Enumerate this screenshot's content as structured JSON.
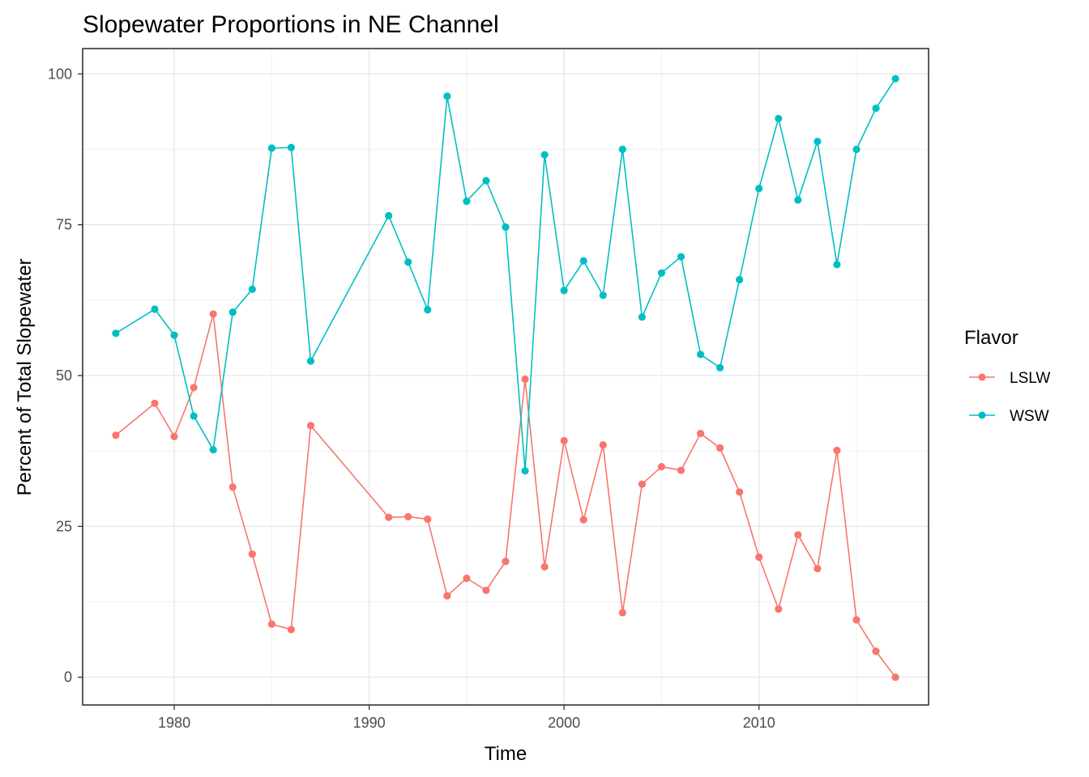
{
  "chart_data": {
    "type": "line",
    "title": "Slopewater Proportions in NE Channel",
    "xlabel": "Time",
    "ylabel": "Percent of Total Slopewater",
    "xlim": [
      1975.3,
      2018.7
    ],
    "ylim": [
      -4.6,
      104.2
    ],
    "x_ticks": [
      1980,
      1990,
      2000,
      2010
    ],
    "x_tick_labels": [
      "1980",
      "1990",
      "2000",
      "2010"
    ],
    "y_ticks": [
      0,
      25,
      50,
      75,
      100
    ],
    "y_tick_labels": [
      "0",
      "25",
      "50",
      "75",
      "100"
    ],
    "grid": true,
    "legend": {
      "title": "Flavor",
      "position": "right"
    },
    "series": [
      {
        "name": "LSLW",
        "color": "#F8766D",
        "points": [
          [
            1977,
            40.1
          ],
          [
            1979,
            45.4
          ],
          [
            1980,
            39.9
          ],
          [
            1981,
            48.0
          ],
          [
            1982,
            60.2
          ],
          [
            1983,
            31.5
          ],
          [
            1984,
            20.4
          ],
          [
            1985,
            8.8
          ],
          [
            1986,
            7.9
          ],
          [
            1987,
            41.7
          ],
          [
            1991,
            26.5
          ],
          [
            1992,
            26.6
          ],
          [
            1993,
            26.2
          ],
          [
            1994,
            13.5
          ],
          [
            1995,
            16.4
          ],
          [
            1996,
            14.4
          ],
          [
            1997,
            19.2
          ],
          [
            1998,
            49.4
          ],
          [
            1999,
            18.3
          ],
          [
            2000,
            39.2
          ],
          [
            2001,
            26.1
          ],
          [
            2002,
            38.5
          ],
          [
            2003,
            10.7
          ],
          [
            2004,
            32.0
          ],
          [
            2005,
            34.9
          ],
          [
            2006,
            34.3
          ],
          [
            2007,
            40.4
          ],
          [
            2008,
            38.0
          ],
          [
            2009,
            30.7
          ],
          [
            2010,
            19.9
          ],
          [
            2011,
            11.3
          ],
          [
            2012,
            23.6
          ],
          [
            2013,
            18.0
          ],
          [
            2014,
            37.6
          ],
          [
            2015,
            9.5
          ],
          [
            2016,
            4.3
          ],
          [
            2017,
            0.0
          ]
        ]
      },
      {
        "name": "WSW",
        "color": "#00BFC4",
        "points": [
          [
            1977,
            57.0
          ],
          [
            1979,
            61.0
          ],
          [
            1980,
            56.7
          ],
          [
            1981,
            43.3
          ],
          [
            1982,
            37.7
          ],
          [
            1983,
            60.5
          ],
          [
            1984,
            64.3
          ],
          [
            1985,
            87.7
          ],
          [
            1986,
            87.8
          ],
          [
            1987,
            52.4
          ],
          [
            1991,
            76.5
          ],
          [
            1992,
            68.8
          ],
          [
            1993,
            60.9
          ],
          [
            1994,
            96.3
          ],
          [
            1995,
            78.9
          ],
          [
            1996,
            82.3
          ],
          [
            1997,
            74.6
          ],
          [
            1998,
            34.2
          ],
          [
            1999,
            86.6
          ],
          [
            2000,
            64.1
          ],
          [
            2001,
            69.0
          ],
          [
            2002,
            63.3
          ],
          [
            2003,
            87.5
          ],
          [
            2004,
            59.7
          ],
          [
            2005,
            67.0
          ],
          [
            2006,
            69.7
          ],
          [
            2007,
            53.5
          ],
          [
            2008,
            51.3
          ],
          [
            2009,
            65.9
          ],
          [
            2010,
            81.0
          ],
          [
            2011,
            92.6
          ],
          [
            2012,
            79.1
          ],
          [
            2013,
            88.8
          ],
          [
            2014,
            68.4
          ],
          [
            2015,
            87.5
          ],
          [
            2016,
            94.3
          ],
          [
            2017,
            99.2
          ]
        ]
      }
    ]
  }
}
